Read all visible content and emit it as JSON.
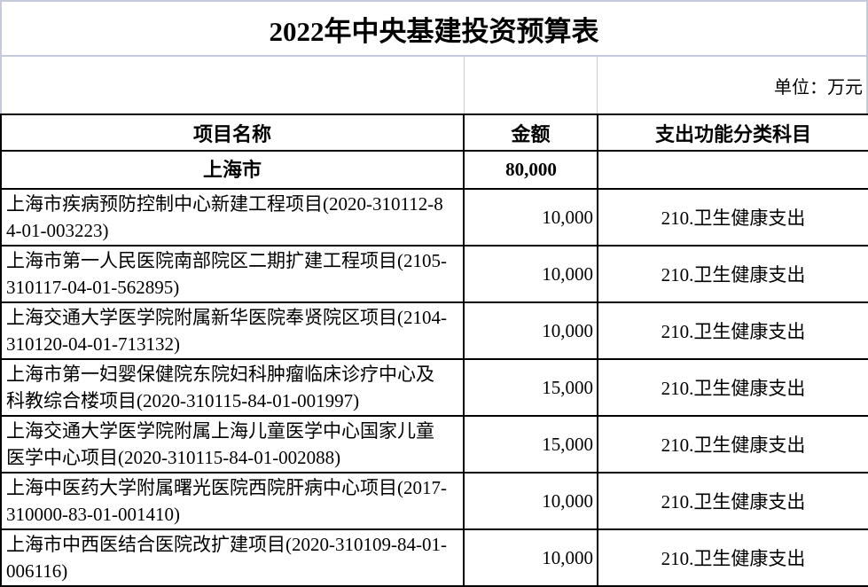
{
  "title": "2022年中央基建投资预算表",
  "unit_note": "单位：万元",
  "colors": {
    "gridline": "#c5cbdd",
    "table_border": "#000000",
    "text": "#000000",
    "background": "#ffffff"
  },
  "table": {
    "headers": [
      "项目名称",
      "金额",
      "支出功能分类科目"
    ],
    "summary_row": {
      "name": "上海市",
      "amount": "80,000",
      "category": ""
    },
    "rows": [
      {
        "name": "上海市疾病预防控制中心新建工程项目(2020-310112-84-01-003223)",
        "amount": "10,000",
        "category": "210.卫生健康支出"
      },
      {
        "name": "上海市第一人民医院南部院区二期扩建工程项目(2105-310117-04-01-562895)",
        "amount": "10,000",
        "category": "210.卫生健康支出"
      },
      {
        "name": "上海交通大学医学院附属新华医院奉贤院区项目(2104-310120-04-01-713132)",
        "amount": "10,000",
        "category": "210.卫生健康支出"
      },
      {
        "name": "上海市第一妇婴保健院东院妇科肿瘤临床诊疗中心及科教综合楼项目(2020-310115-84-01-001997)",
        "amount": "15,000",
        "category": "210.卫生健康支出"
      },
      {
        "name": "上海交通大学医学院附属上海儿童医学中心国家儿童医学中心项目(2020-310115-84-01-002088)",
        "amount": "15,000",
        "category": "210.卫生健康支出"
      },
      {
        "name": "上海中医药大学附属曙光医院西院肝病中心项目(2017-310000-83-01-001410)",
        "amount": "10,000",
        "category": "210.卫生健康支出"
      },
      {
        "name": "上海市中西医结合医院改扩建项目(2020-310109-84-01-006116)",
        "amount": "10,000",
        "category": "210.卫生健康支出"
      }
    ]
  }
}
